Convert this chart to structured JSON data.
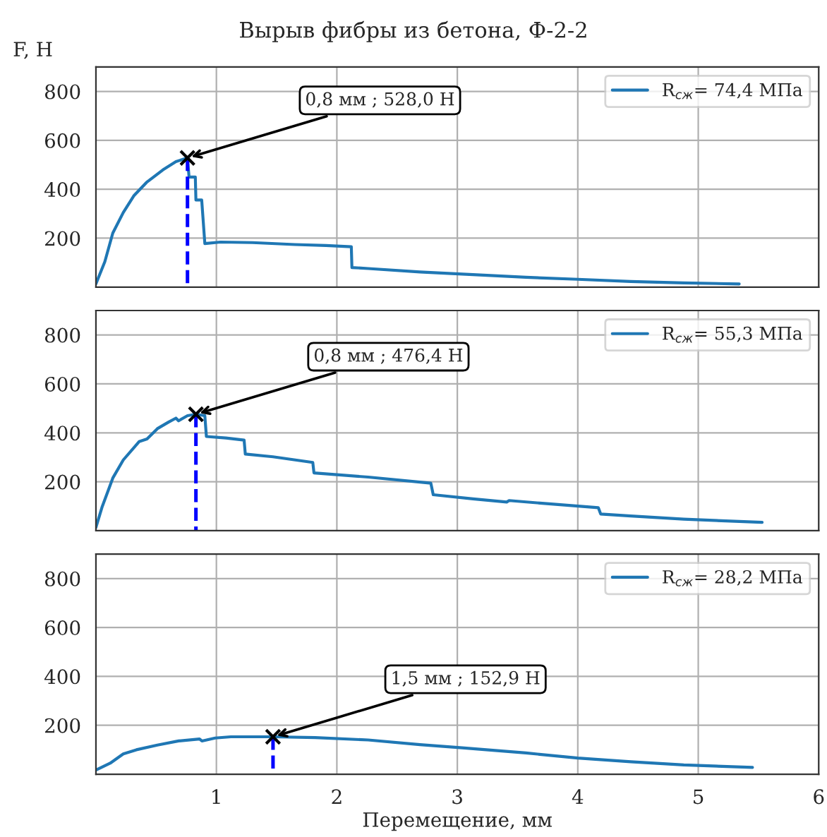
{
  "chart_data": [
    {
      "type": "line",
      "title": "Вырыв фибры из бетона, Ф-2-2",
      "ylabel": "F, Н",
      "xlim": [
        0,
        6
      ],
      "ylim": [
        0,
        900
      ],
      "xticks": [
        1,
        2,
        3,
        4,
        5,
        6
      ],
      "yticks": [
        200,
        400,
        600,
        800
      ],
      "grid": true,
      "legend": "top right",
      "tick_labels": "y",
      "series": [
        {
          "name": "R$_{сж}$= 74,4 МПа",
          "color": "#1f77b4",
          "x": [
            0,
            0.074,
            0.14,
            0.227,
            0.314,
            0.42,
            0.555,
            0.664,
            0.76,
            0.773,
            0.825,
            0.83,
            0.878,
            0.904,
            1.035,
            1.3,
            1.65,
            1.91,
            2.12,
            2.125,
            2.26,
            2.69,
            3.13,
            3.57,
            4.0,
            4.44,
            4.88,
            5.34
          ],
          "values": [
            13,
            104,
            221,
            305,
            373,
            428,
            479,
            513,
            528,
            450,
            450,
            356,
            356,
            178,
            184,
            182,
            174,
            170,
            165,
            80,
            76,
            62,
            51,
            40,
            32,
            23,
            17,
            13
          ]
        },
        {
          "type": "line",
          "line_style": "dashed",
          "color": "#0000ff",
          "x": [
            0.76,
            0.76
          ],
          "values": [
            0,
            528
          ]
        },
        {
          "type": "scatter",
          "marker": "cross",
          "color": "#000000",
          "x": [
            0.76
          ],
          "values": [
            528
          ]
        }
      ],
      "annotations": [
        {
          "text": "0,8 мм ; 528,0 Н",
          "x": 0.76,
          "y": 528
        }
      ]
    },
    {
      "type": "line",
      "xlim": [
        0,
        6
      ],
      "ylim": [
        0,
        900
      ],
      "xticks": [
        1,
        2,
        3,
        4,
        5,
        6
      ],
      "yticks": [
        200,
        400,
        600,
        800
      ],
      "grid": true,
      "legend": "top right",
      "tick_labels": "y",
      "series": [
        {
          "name": "R$_{сж}$= 55,3 МПа",
          "color": "#1f77b4",
          "x": [
            0,
            0.052,
            0.14,
            0.227,
            0.358,
            0.424,
            0.51,
            0.6,
            0.664,
            0.686,
            0.76,
            0.83,
            0.904,
            0.917,
            1.08,
            1.23,
            1.24,
            1.47,
            1.8,
            1.81,
            2.26,
            2.78,
            2.8,
            3.13,
            3.41,
            3.43,
            3.78,
            4.17,
            4.19,
            4.44,
            4.88,
            5.53
          ],
          "values": [
            13,
            98,
            215,
            289,
            364,
            375,
            417,
            443,
            460,
            449,
            470,
            476,
            470,
            385,
            379,
            370,
            313,
            302,
            279,
            236,
            219,
            194,
            147,
            130,
            117,
            123,
            109,
            94,
            68,
            60,
            47,
            34
          ]
        },
        {
          "type": "line",
          "line_style": "dashed",
          "color": "#0000ff",
          "x": [
            0.83,
            0.83
          ],
          "values": [
            0,
            476
          ]
        },
        {
          "type": "scatter",
          "marker": "cross",
          "color": "#000000",
          "x": [
            0.83
          ],
          "values": [
            476
          ]
        }
      ],
      "annotations": [
        {
          "text": "0,8 мм ; 476,4 Н",
          "x": 0.83,
          "y": 476
        }
      ]
    },
    {
      "type": "line",
      "xlabel": "Перемещение, мм",
      "xlim": [
        0,
        6
      ],
      "ylim": [
        0,
        900
      ],
      "xticks": [
        1,
        2,
        3,
        4,
        5,
        6
      ],
      "yticks": [
        200,
        400,
        600,
        800
      ],
      "grid": true,
      "legend": "top right",
      "series": [
        {
          "name": "R$_{сж}$= 28,2 МПа",
          "color": "#1f77b4",
          "x": [
            0,
            0.118,
            0.227,
            0.336,
            0.51,
            0.686,
            0.86,
            0.88,
            0.99,
            1.12,
            1.47,
            1.82,
            2.26,
            2.69,
            3.04,
            3.57,
            4.0,
            4.44,
            4.88,
            5.45
          ],
          "values": [
            17,
            45,
            83,
            100,
            119,
            136,
            144,
            136,
            148,
            153,
            153,
            150,
            140,
            121,
            108,
            87,
            66,
            51,
            38,
            28
          ]
        },
        {
          "type": "line",
          "line_style": "dashed",
          "color": "#0000ff",
          "x": [
            1.47,
            1.47
          ],
          "values": [
            0,
            153
          ]
        },
        {
          "type": "scatter",
          "marker": "cross",
          "color": "#000000",
          "x": [
            1.47
          ],
          "values": [
            153
          ]
        }
      ],
      "annotations": [
        {
          "text": "1,5 мм ; 152,9 Н",
          "x": 1.47,
          "y": 153
        }
      ]
    }
  ]
}
